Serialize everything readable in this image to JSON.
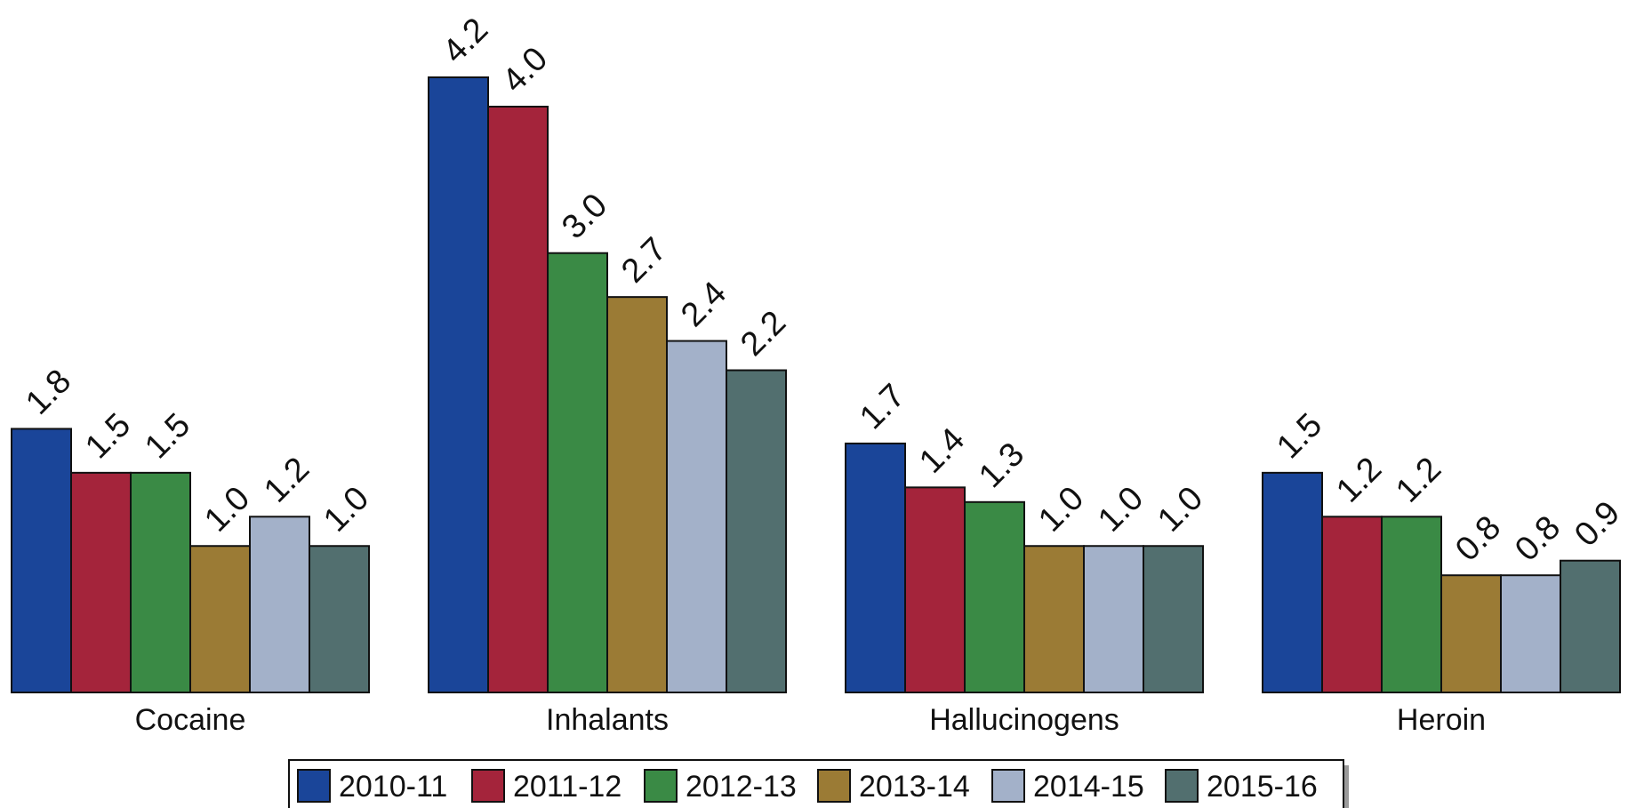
{
  "chart_data": {
    "type": "bar",
    "categories": [
      "Cocaine",
      "Inhalants",
      "Hallucinogens",
      "Heroin"
    ],
    "series": [
      {
        "name": "2010-11",
        "color": "#1a4599",
        "values": [
          1.8,
          4.2,
          1.7,
          1.5
        ],
        "labels": [
          "1.8",
          "4.2",
          "1.7",
          "1.5"
        ]
      },
      {
        "name": "2011-12",
        "color": "#a4243b",
        "values": [
          1.5,
          4.0,
          1.4,
          1.2
        ],
        "labels": [
          "1.5",
          "4.0",
          "1.4",
          "1.2"
        ]
      },
      {
        "name": "2012-13",
        "color": "#3a8a45",
        "values": [
          1.5,
          3.0,
          1.3,
          1.2
        ],
        "labels": [
          "1.5",
          "3.0",
          "1.3",
          "1.2"
        ]
      },
      {
        "name": "2013-14",
        "color": "#9b7b35",
        "values": [
          1.0,
          2.7,
          1.0,
          0.8
        ],
        "labels": [
          "1.0",
          "2.7",
          "1.0",
          "0.8"
        ]
      },
      {
        "name": "2014-15",
        "color": "#a3b1c9",
        "values": [
          1.2,
          2.4,
          1.0,
          0.8
        ],
        "labels": [
          "1.2",
          "2.4",
          "1.0",
          "0.8"
        ]
      },
      {
        "name": "2015-16",
        "color": "#526f6f",
        "values": [
          1.0,
          2.2,
          1.0,
          0.9
        ],
        "labels": [
          "1.0",
          "2.2",
          "1.0",
          "0.9"
        ]
      }
    ],
    "title": "",
    "xlabel": "",
    "ylabel": "",
    "ylim": [
      0,
      4.2
    ],
    "grid": false,
    "legend_position": "bottom"
  }
}
